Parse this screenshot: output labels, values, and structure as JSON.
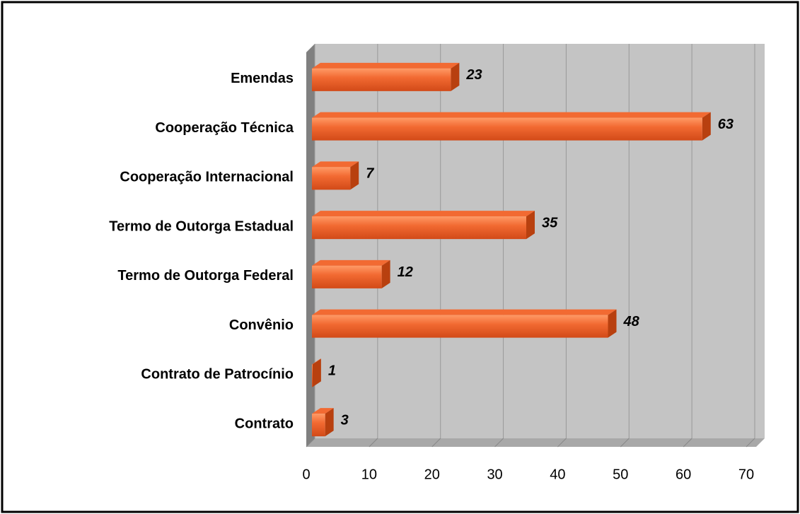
{
  "chart_data": {
    "type": "bar",
    "orientation": "horizontal",
    "categories": [
      "Emendas",
      "Cooperação Técnica",
      "Cooperação Internacional",
      "Termo de Outorga Estadual",
      "Termo de Outorga Federal",
      "Convênio",
      "Contrato de Patrocínio",
      "Contrato"
    ],
    "values": [
      23,
      63,
      7,
      35,
      12,
      48,
      1,
      3
    ],
    "color": "#f26a32",
    "xlim": [
      0,
      70
    ],
    "xticks": [
      0,
      10,
      20,
      30,
      40,
      50,
      60,
      70
    ],
    "grid": true
  }
}
